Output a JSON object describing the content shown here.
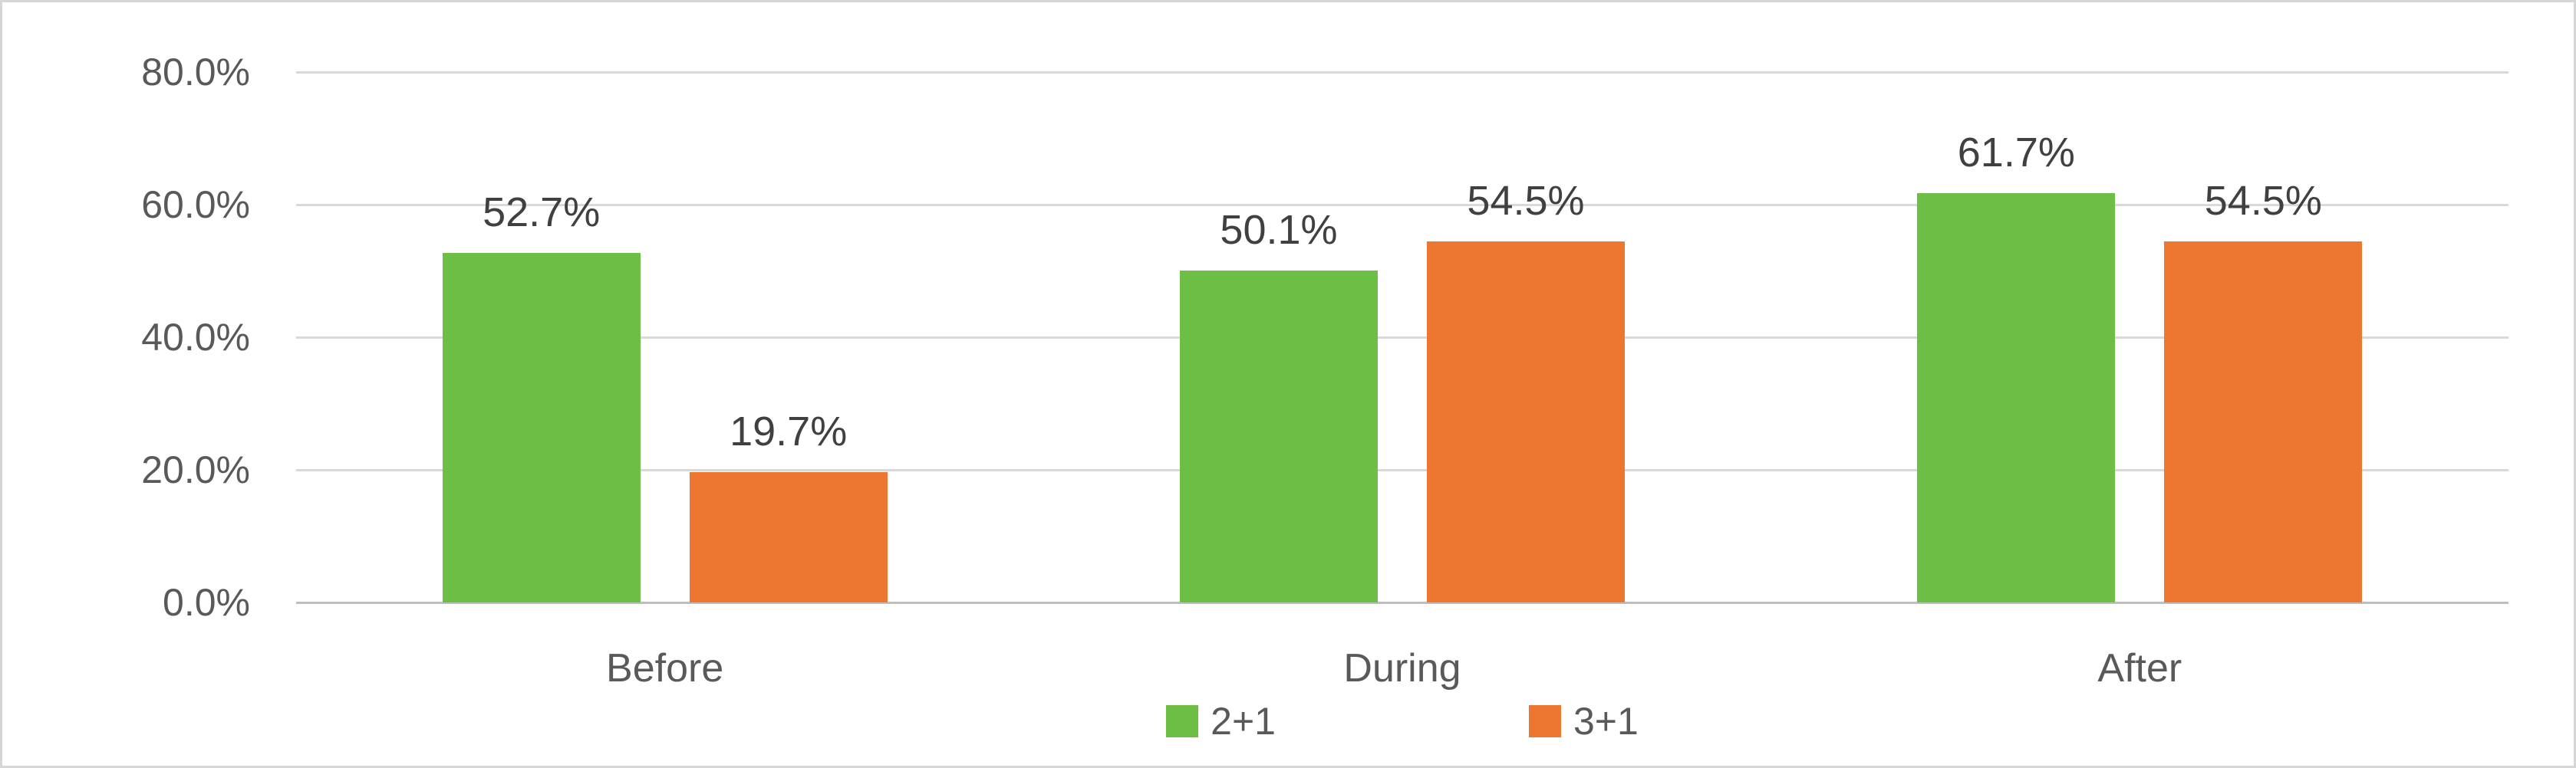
{
  "chart_data": {
    "type": "bar",
    "title": "",
    "categories": [
      "Before",
      "During",
      "After"
    ],
    "series": [
      {
        "name": "2+1",
        "color": "#6CBE45",
        "values": [
          52.7,
          50.1,
          61.7
        ],
        "labels": [
          "52.7%",
          "50.1%",
          "61.7%"
        ]
      },
      {
        "name": "3+1",
        "color": "#ED7631",
        "values": [
          19.7,
          54.5,
          54.5
        ],
        "labels": [
          "19.7%",
          "54.5%",
          "54.5%"
        ]
      }
    ],
    "y_axis": {
      "min": 0,
      "max": 80,
      "tick_step": 20,
      "tick_labels": [
        "0.0%",
        "20.0%",
        "40.0%",
        "60.0%",
        "80.0%"
      ]
    },
    "x_axis": {
      "label": ""
    },
    "grid": true,
    "legend_position": "bottom",
    "colors": {
      "gridline": "#d9d9d9",
      "axis_line": "#bfbfbf",
      "data_label_text": "#404040",
      "axis_text": "#595959",
      "chart_border": "#d6d6d6",
      "background": "#ffffff"
    }
  }
}
